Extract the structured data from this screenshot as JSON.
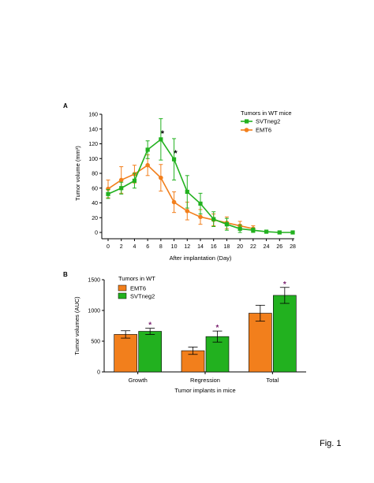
{
  "figure_label": "Fig. 1",
  "chart_data": [
    {
      "panel": "A",
      "type": "line",
      "xlabel": "After implantation (Day)",
      "ylabel": "Tumor volume (mm³)",
      "xlim": [
        0,
        28
      ],
      "ylim": [
        0,
        160
      ],
      "x_ticks": [
        "0",
        "2",
        "4",
        "6",
        "8",
        "10",
        "12",
        "14",
        "16",
        "18",
        "20",
        "22",
        "24",
        "26",
        "28"
      ],
      "y_ticks": [
        "0",
        "20",
        "40",
        "60",
        "80",
        "100",
        "120",
        "140",
        "160"
      ],
      "legend_title": "Tumors in WT mice",
      "legend_position": "top-right",
      "grid": false,
      "series": [
        {
          "name": "SVTneg2",
          "color": "#22b11f",
          "marker": "square",
          "x": [
            0,
            2,
            4,
            6,
            8,
            10,
            12,
            14,
            16,
            18,
            20,
            22,
            24,
            26,
            28
          ],
          "y": [
            52,
            60,
            70,
            112,
            126,
            99,
            55,
            39,
            18,
            11,
            5,
            3,
            1,
            0,
            0
          ],
          "err": [
            6,
            8,
            10,
            12,
            28,
            28,
            22,
            14,
            10,
            8,
            5,
            3,
            1,
            1,
            1
          ]
        },
        {
          "name": "EMT6",
          "color": "#f27f1c",
          "marker": "circle",
          "x": [
            0,
            2,
            4,
            6,
            8,
            10,
            12,
            14,
            16,
            18,
            20,
            22
          ],
          "y": [
            59,
            71,
            79,
            91,
            74,
            41,
            29,
            21,
            17,
            13,
            9,
            5
          ],
          "err": [
            12,
            18,
            12,
            14,
            18,
            14,
            12,
            10,
            8,
            8,
            6,
            4
          ]
        }
      ],
      "annotations": [
        {
          "text": "*",
          "x": 8,
          "y": 126
        },
        {
          "text": "*",
          "x": 10,
          "y": 99
        }
      ]
    },
    {
      "panel": "B",
      "type": "bar",
      "xlabel": "Tumor implants in mice",
      "ylabel": "Tumor volumes (AUC)",
      "ylim": [
        0,
        1500
      ],
      "y_ticks": [
        "0",
        "500",
        "1000",
        "1500"
      ],
      "categories": [
        "Growth",
        "Regression",
        "Total"
      ],
      "legend_title": "Tumors in WT",
      "legend_position": "top-left",
      "grid": false,
      "series": [
        {
          "name": "EMT6",
          "color": "#f27f1c",
          "values": [
            610,
            345,
            955
          ],
          "err": [
            60,
            60,
            130
          ]
        },
        {
          "name": "SVTneg2",
          "color": "#22b11f",
          "values": [
            660,
            575,
            1245
          ],
          "err": [
            50,
            90,
            130
          ]
        }
      ],
      "annotations": [
        {
          "text": "*",
          "category": "Growth",
          "series": "SVTneg2"
        },
        {
          "text": "*",
          "category": "Regression",
          "series": "SVTneg2"
        },
        {
          "text": "*",
          "category": "Total",
          "series": "SVTneg2"
        }
      ],
      "annotation_color": "#7a1f6e"
    }
  ]
}
